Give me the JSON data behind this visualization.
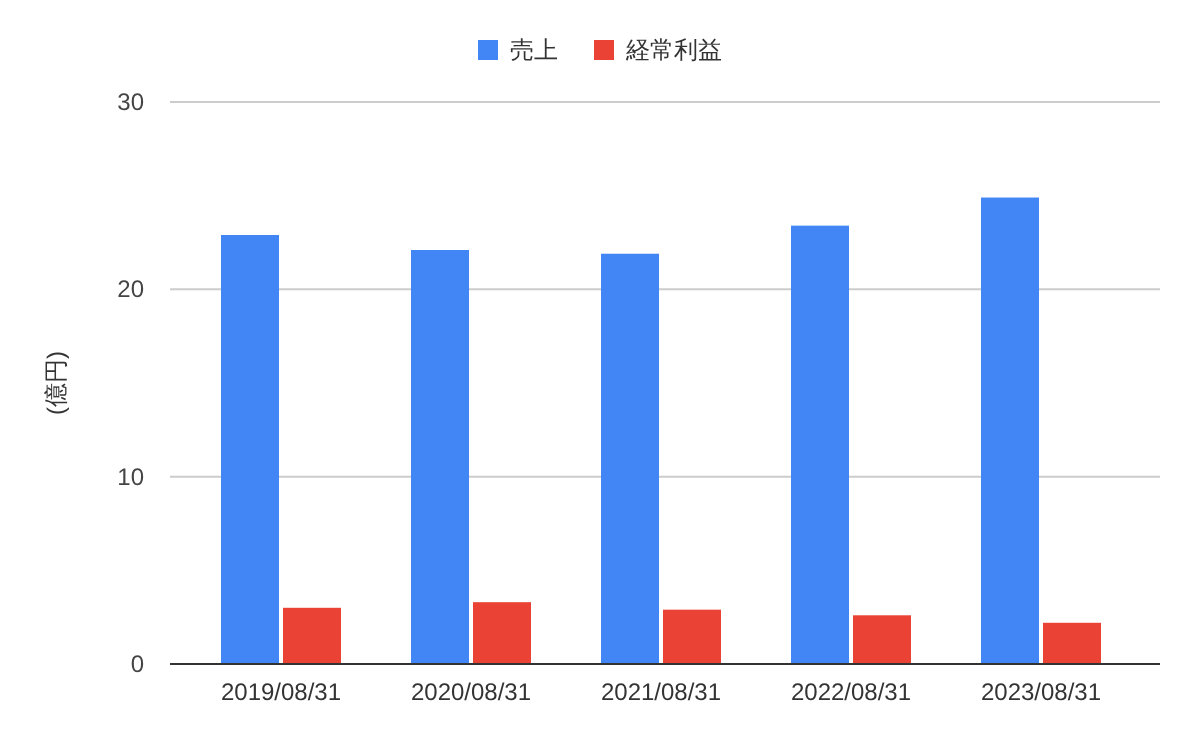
{
  "chart_data": {
    "type": "bar",
    "ylabel": "(億円)",
    "categories": [
      "2019/08/31",
      "2020/08/31",
      "2021/08/31",
      "2022/08/31",
      "2023/08/31"
    ],
    "series": [
      {
        "name": "売上",
        "color": "#4285f4",
        "values": [
          22.9,
          22.1,
          21.9,
          23.4,
          24.9
        ]
      },
      {
        "name": "経常利益",
        "color": "#ea4335",
        "values": [
          3.0,
          3.3,
          2.9,
          2.6,
          2.2
        ]
      }
    ],
    "ylim": [
      0,
      30
    ],
    "yticks": [
      0,
      10,
      20,
      30
    ],
    "grid": "y",
    "legend": "top"
  }
}
